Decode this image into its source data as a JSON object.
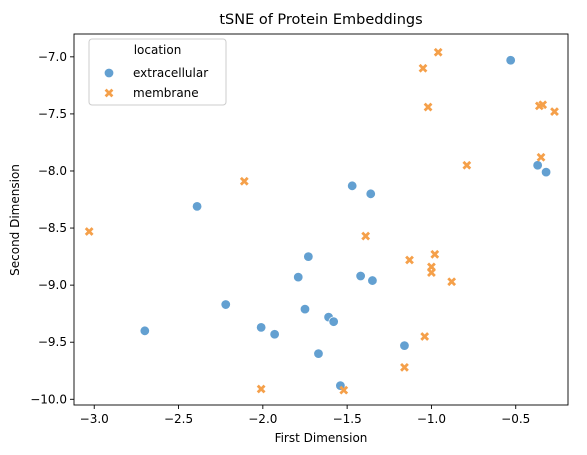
{
  "chart_data": {
    "type": "scatter",
    "title": "tSNE of Protein Embeddings",
    "xlabel": "First Dimension",
    "ylabel": "Second Dimension",
    "xlim": [
      -3.12,
      -0.19
    ],
    "ylim": [
      -10.05,
      -6.8
    ],
    "xticks": [
      -3.0,
      -2.5,
      -2.0,
      -1.5,
      -1.0,
      -0.5
    ],
    "xtick_labels": [
      "−3.0",
      "−2.5",
      "−2.0",
      "−1.5",
      "−1.0",
      "−0.5"
    ],
    "yticks": [
      -10.0,
      -9.5,
      -9.0,
      -8.5,
      -8.0,
      -7.5,
      -7.0
    ],
    "ytick_labels": [
      "−10.0",
      "−9.5",
      "−9.0",
      "−8.5",
      "−8.0",
      "−7.5",
      "−7.0"
    ],
    "grid": false,
    "legend": {
      "title": "location",
      "placement": "upper-left"
    },
    "series": [
      {
        "name": "extracellular",
        "marker": "circle",
        "color": "#5b9bcf",
        "points": [
          [
            -2.7,
            -9.4
          ],
          [
            -2.39,
            -8.31
          ],
          [
            -2.22,
            -9.17
          ],
          [
            -2.01,
            -9.37
          ],
          [
            -1.93,
            -9.43
          ],
          [
            -1.79,
            -8.93
          ],
          [
            -1.75,
            -9.21
          ],
          [
            -1.73,
            -8.75
          ],
          [
            -1.67,
            -9.6
          ],
          [
            -1.61,
            -9.28
          ],
          [
            -1.58,
            -9.32
          ],
          [
            -1.54,
            -9.88
          ],
          [
            -1.47,
            -8.13
          ],
          [
            -1.42,
            -8.92
          ],
          [
            -1.36,
            -8.2
          ],
          [
            -1.35,
            -8.96
          ],
          [
            -1.16,
            -9.53
          ],
          [
            -0.53,
            -7.03
          ],
          [
            -0.37,
            -7.95
          ],
          [
            -0.32,
            -8.01
          ]
        ]
      },
      {
        "name": "membrane",
        "marker": "x",
        "color": "#f5a04a",
        "points": [
          [
            -3.03,
            -8.53
          ],
          [
            -2.11,
            -8.09
          ],
          [
            -2.01,
            -9.91
          ],
          [
            -1.52,
            -9.92
          ],
          [
            -1.39,
            -8.57
          ],
          [
            -1.16,
            -9.72
          ],
          [
            -1.13,
            -8.78
          ],
          [
            -1.05,
            -7.1
          ],
          [
            -1.04,
            -9.45
          ],
          [
            -1.02,
            -7.44
          ],
          [
            -1.0,
            -8.84
          ],
          [
            -1.0,
            -8.89
          ],
          [
            -0.98,
            -8.73
          ],
          [
            -0.96,
            -6.96
          ],
          [
            -0.88,
            -8.97
          ],
          [
            -0.79,
            -7.95
          ],
          [
            -0.36,
            -7.43
          ],
          [
            -0.35,
            -7.88
          ],
          [
            -0.34,
            -7.42
          ],
          [
            -0.27,
            -7.48
          ]
        ]
      }
    ]
  }
}
